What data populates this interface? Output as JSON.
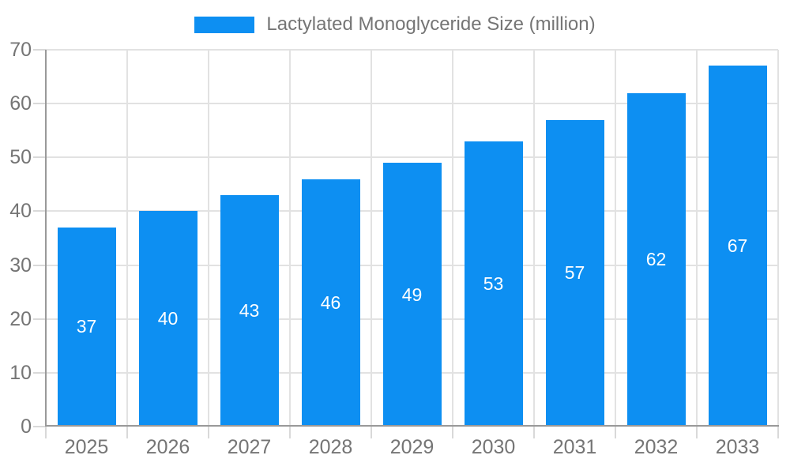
{
  "chart_data": {
    "type": "bar",
    "title": "Lactylated Monoglyceride Size (million)",
    "categories": [
      "2025",
      "2026",
      "2027",
      "2028",
      "2029",
      "2030",
      "2031",
      "2032",
      "2033"
    ],
    "series": [
      {
        "name": "Lactylated Monoglyceride Size (million)",
        "values": [
          37,
          40,
          43,
          46,
          49,
          53,
          57,
          62,
          67
        ]
      }
    ],
    "xlabel": "",
    "ylabel": "",
    "ylim": [
      0,
      70
    ],
    "yticks": [
      0,
      10,
      20,
      30,
      40,
      50,
      60,
      70
    ],
    "grid": true,
    "legend_position": "top",
    "value_labels": "inside-center"
  },
  "colors": {
    "bar": "#0d8ff2",
    "axis_line": "#999999",
    "grid_line": "#e2e2e2",
    "tick_mark": "#d9d9d9",
    "axis_text": "#757575",
    "value_label_text": "#ffffff",
    "background": "#ffffff"
  }
}
